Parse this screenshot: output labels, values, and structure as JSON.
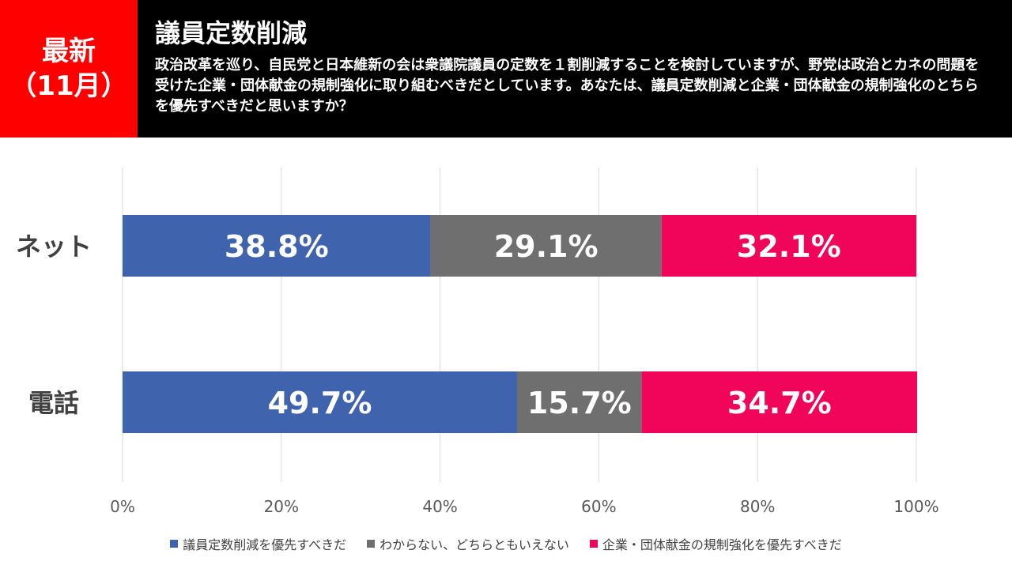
{
  "header": {
    "badge_line1": "最新",
    "badge_line2": "（11月）",
    "title": "議員定数削減",
    "question": "政治改革を巡り、自民党と日本維新の会は衆議院議員の定数を１割削減することを検討していますが、野党は政治とカネの問題を受けた企業・団体献金の規制強化に取り組むべきだとしています。あなたは、議員定数削減と企業・団体献金の規制強化のとちらを優先すべきだと思いますか？"
  },
  "colors": {
    "header_bg": "#000000",
    "badge_bg": "#ff0000",
    "series1": "#3f64ad",
    "series2": "#6f6f6f",
    "series3": "#f0055a"
  },
  "chart_data": {
    "type": "bar",
    "orientation": "horizontal",
    "stacked": true,
    "categories": [
      "ネット",
      "電話"
    ],
    "series": [
      {
        "name": "議員定数削減を優先すべきだ",
        "values": [
          38.8,
          49.7
        ],
        "labels": [
          "38.8%",
          "49.7%"
        ]
      },
      {
        "name": "わからない、どちらともいえない",
        "values": [
          29.1,
          15.7
        ],
        "labels": [
          "29.1%",
          "15.7%"
        ]
      },
      {
        "name": "企業・団体献金の規制強化を優先すべきだ",
        "values": [
          32.1,
          34.7
        ],
        "labels": [
          "32.1%",
          "34.7%"
        ]
      }
    ],
    "xlim": [
      0,
      100
    ],
    "xticks": [
      0,
      20,
      40,
      60,
      80,
      100
    ],
    "xtick_labels": [
      "0%",
      "20%",
      "40%",
      "60%",
      "80%",
      "100%"
    ],
    "grid": true,
    "legend": "bottom"
  }
}
